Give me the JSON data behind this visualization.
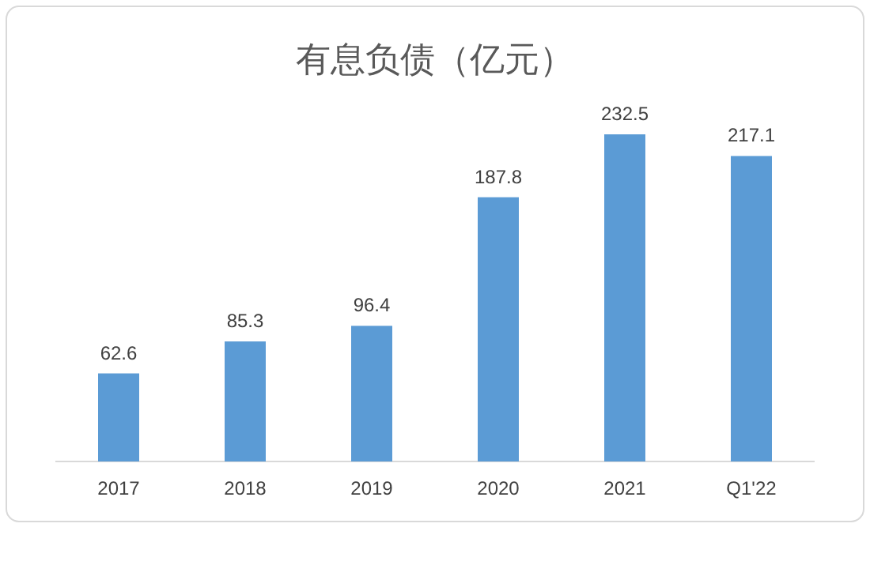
{
  "chart_data": {
    "type": "bar",
    "title": "有息负债（亿元）",
    "categories": [
      "2017",
      "2018",
      "2019",
      "2020",
      "2021",
      "Q1'22"
    ],
    "values": [
      62.6,
      85.3,
      96.4,
      187.8,
      232.5,
      217.1
    ],
    "color": "#5b9bd5",
    "data_labels": true
  }
}
